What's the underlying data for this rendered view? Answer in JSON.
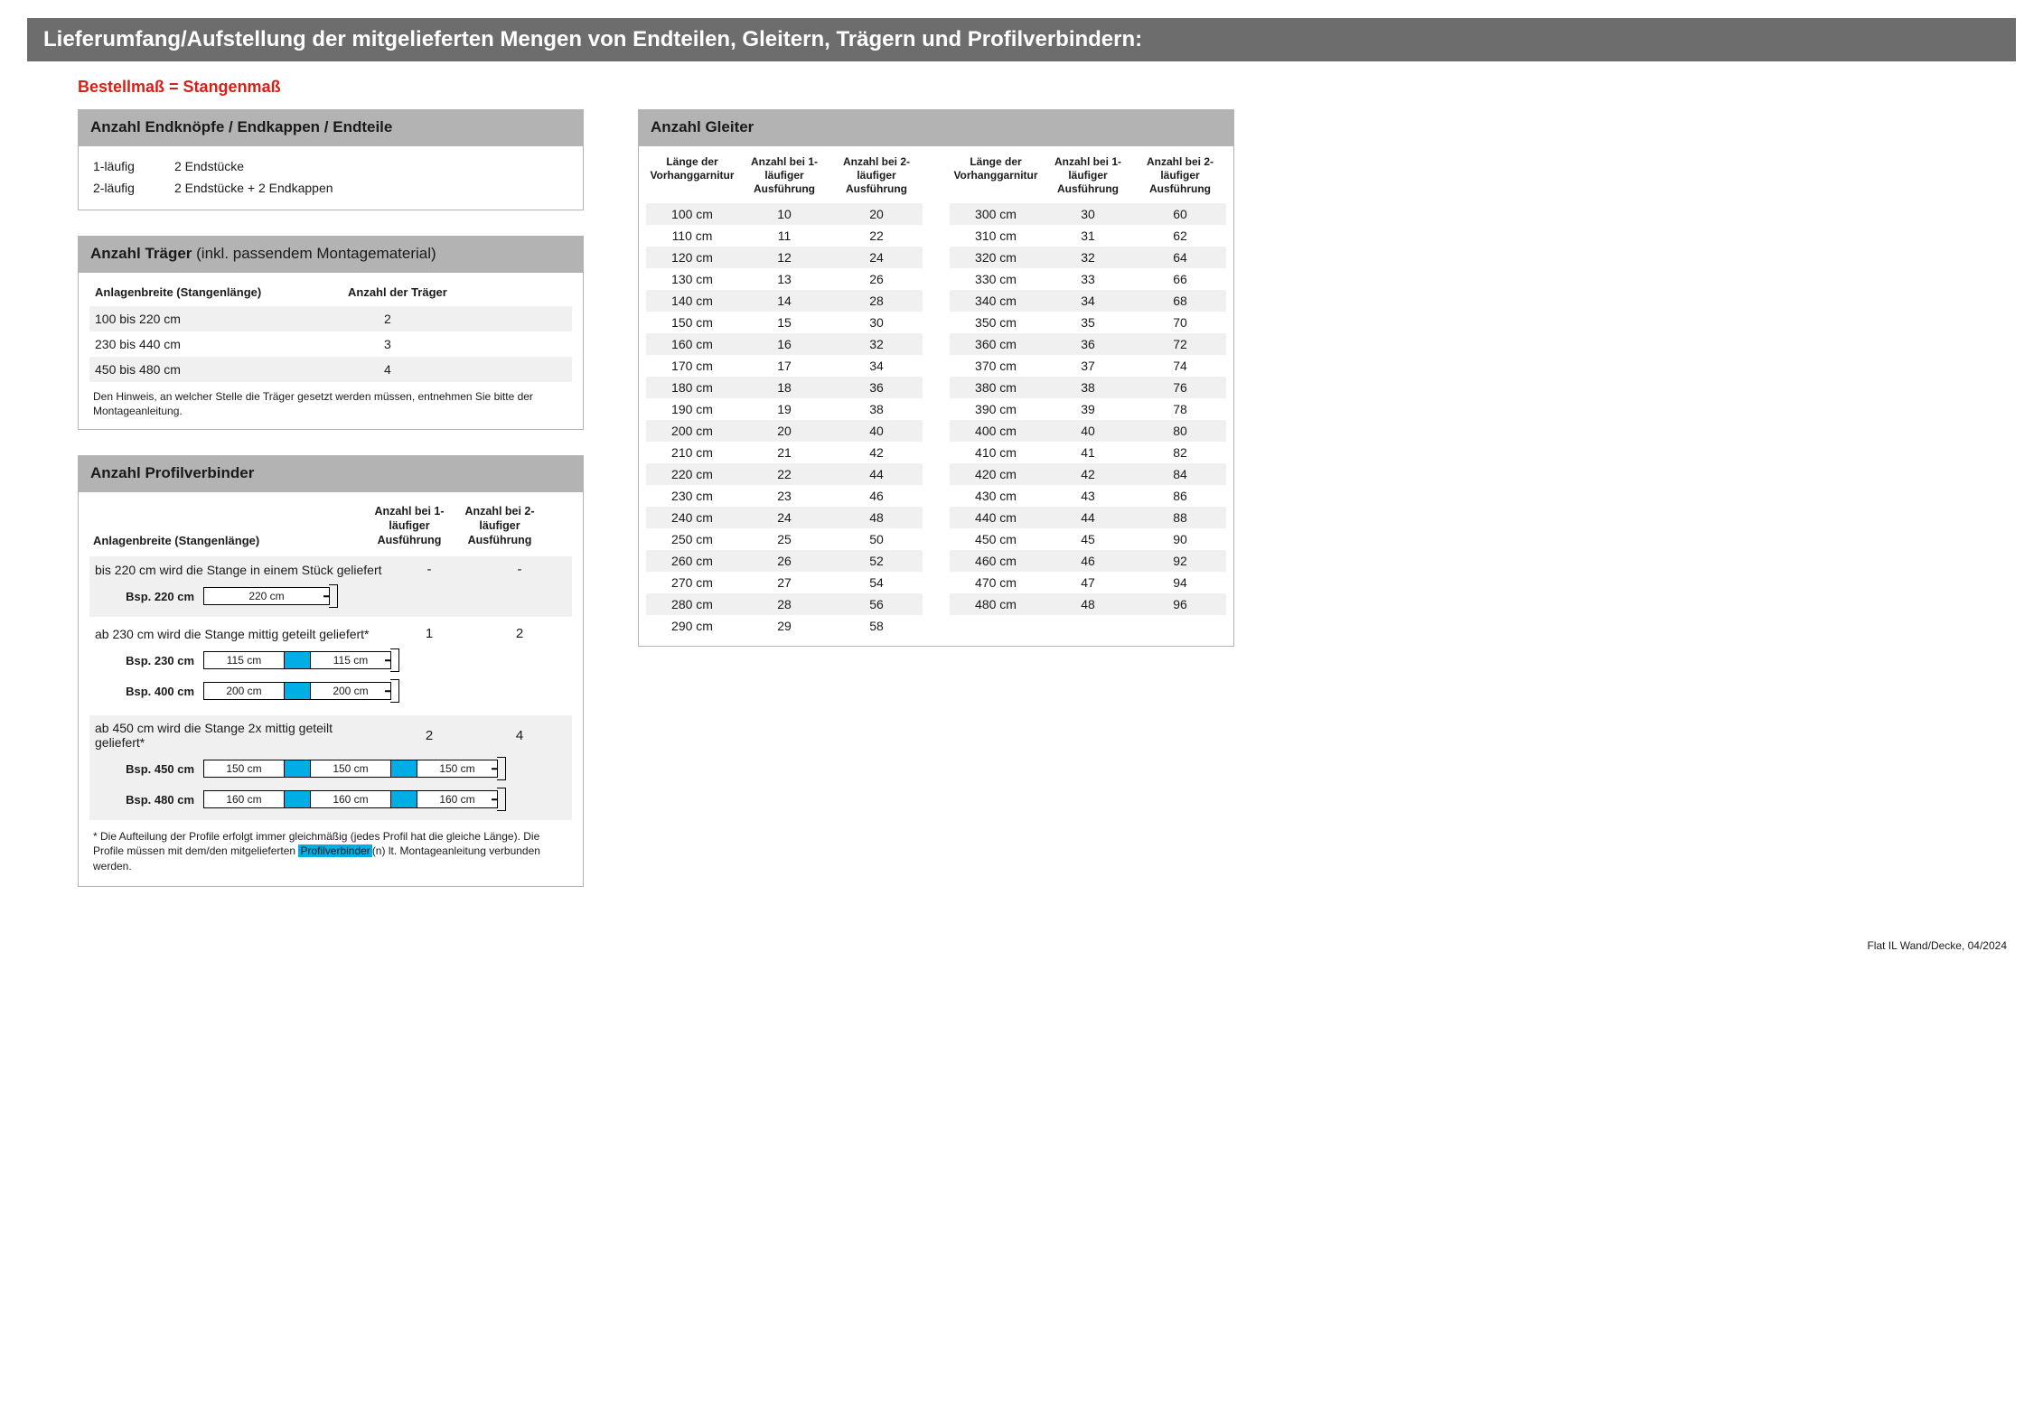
{
  "header": "Lieferumfang/Aufstellung der mitgelieferten Mengen von Endteilen, Gleitern, Trägern und Profilverbindern:",
  "subtitle": "Bestellmaß = Stangenmaß",
  "footer": "Flat IL Wand/Decke, 04/2024",
  "endteile": {
    "title": "Anzahl Endknöpfe / Endkappen / Endteile",
    "rows": [
      {
        "a": "1-läufig",
        "b": "2 Endstücke"
      },
      {
        "a": "2-läufig",
        "b": "2 Endstücke + 2 Endkappen"
      }
    ]
  },
  "traeger": {
    "title_bold": "Anzahl Träger",
    "title_light": " (inkl. passendem Montagematerial)",
    "head_a": "Anlagenbreite (Stangenlänge)",
    "head_b": "Anzahl der Träger",
    "rows": [
      {
        "a": "100 bis 220 cm",
        "b": "2"
      },
      {
        "a": "230 bis 440 cm",
        "b": "3"
      },
      {
        "a": "450 bis 480 cm",
        "b": "4"
      }
    ],
    "note": "Den Hinweis, an welcher Stelle die Träger gesetzt werden müssen, entnehmen Sie bitte der Montageanleitung."
  },
  "pv": {
    "title": "Anzahl Profilverbinder",
    "head_a": "Anlagenbreite (Stangenlänge)",
    "head_b": "Anzahl bei 1-läufiger Ausführung",
    "head_c": "Anzahl bei 2-läufiger Ausführung",
    "sections": [
      {
        "text": "bis 220 cm wird die Stange in einem Stück geliefert",
        "n1": "-",
        "n2": "-",
        "bsps": [
          {
            "label": "Bsp. 220 cm",
            "segs": [
              "220 cm"
            ]
          }
        ]
      },
      {
        "text": "ab 230 cm wird die Stange mittig geteilt geliefert*",
        "n1": "1",
        "n2": "2",
        "bsps": [
          {
            "label": "Bsp. 230 cm",
            "segs": [
              "115 cm",
              "115 cm"
            ]
          },
          {
            "label": "Bsp. 400 cm",
            "segs": [
              "200 cm",
              "200 cm"
            ]
          }
        ]
      },
      {
        "text": "ab 450 cm wird die Stange 2x mittig geteilt geliefert*",
        "n1": "2",
        "n2": "4",
        "bsps": [
          {
            "label": "Bsp. 450 cm",
            "segs": [
              "150 cm",
              "150 cm",
              "150 cm"
            ]
          },
          {
            "label": "Bsp. 480 cm",
            "segs": [
              "160 cm",
              "160 cm",
              "160 cm"
            ]
          }
        ]
      }
    ],
    "footnote_pre": "* Die Aufteilung der Profile erfolgt immer gleichmäßig (jedes Profil hat die gleiche Länge). Die Profile müssen mit dem/den mitgelieferten ",
    "footnote_hl": "Profilverbinder",
    "footnote_post": "(n) lt. Montageanleitung verbunden werden."
  },
  "gleiter": {
    "title": "Anzahl Gleiter",
    "head1": "Länge der Vorhang­garnitur",
    "head2": "Anzahl bei 1-läufiger Ausführung",
    "head3": "Anzahl bei 2-läufiger Ausführung",
    "left": [
      {
        "l": "100 cm",
        "a": "10",
        "b": "20"
      },
      {
        "l": "110 cm",
        "a": "11",
        "b": "22"
      },
      {
        "l": "120 cm",
        "a": "12",
        "b": "24"
      },
      {
        "l": "130 cm",
        "a": "13",
        "b": "26"
      },
      {
        "l": "140 cm",
        "a": "14",
        "b": "28"
      },
      {
        "l": "150 cm",
        "a": "15",
        "b": "30"
      },
      {
        "l": "160 cm",
        "a": "16",
        "b": "32"
      },
      {
        "l": "170 cm",
        "a": "17",
        "b": "34"
      },
      {
        "l": "180 cm",
        "a": "18",
        "b": "36"
      },
      {
        "l": "190 cm",
        "a": "19",
        "b": "38"
      },
      {
        "l": "200 cm",
        "a": "20",
        "b": "40"
      },
      {
        "l": "210 cm",
        "a": "21",
        "b": "42"
      },
      {
        "l": "220 cm",
        "a": "22",
        "b": "44"
      },
      {
        "l": "230 cm",
        "a": "23",
        "b": "46"
      },
      {
        "l": "240 cm",
        "a": "24",
        "b": "48"
      },
      {
        "l": "250 cm",
        "a": "25",
        "b": "50"
      },
      {
        "l": "260 cm",
        "a": "26",
        "b": "52"
      },
      {
        "l": "270 cm",
        "a": "27",
        "b": "54"
      },
      {
        "l": "280 cm",
        "a": "28",
        "b": "56"
      },
      {
        "l": "290 cm",
        "a": "29",
        "b": "58"
      }
    ],
    "right": [
      {
        "l": "300 cm",
        "a": "30",
        "b": "60"
      },
      {
        "l": "310 cm",
        "a": "31",
        "b": "62"
      },
      {
        "l": "320 cm",
        "a": "32",
        "b": "64"
      },
      {
        "l": "330 cm",
        "a": "33",
        "b": "66"
      },
      {
        "l": "340 cm",
        "a": "34",
        "b": "68"
      },
      {
        "l": "350 cm",
        "a": "35",
        "b": "70"
      },
      {
        "l": "360 cm",
        "a": "36",
        "b": "72"
      },
      {
        "l": "370 cm",
        "a": "37",
        "b": "74"
      },
      {
        "l": "380 cm",
        "a": "38",
        "b": "76"
      },
      {
        "l": "390 cm",
        "a": "39",
        "b": "78"
      },
      {
        "l": "400 cm",
        "a": "40",
        "b": "80"
      },
      {
        "l": "410 cm",
        "a": "41",
        "b": "82"
      },
      {
        "l": "420 cm",
        "a": "42",
        "b": "84"
      },
      {
        "l": "430 cm",
        "a": "43",
        "b": "86"
      },
      {
        "l": "440 cm",
        "a": "44",
        "b": "88"
      },
      {
        "l": "450 cm",
        "a": "45",
        "b": "90"
      },
      {
        "l": "460 cm",
        "a": "46",
        "b": "92"
      },
      {
        "l": "470 cm",
        "a": "47",
        "b": "94"
      },
      {
        "l": "480 cm",
        "a": "48",
        "b": "96"
      }
    ]
  },
  "styling": {
    "header_bg": "#6d6d6d",
    "panel_header_bg": "#b3b3b3",
    "row_even_bg": "#f0f0f0",
    "connector_color": "#00aee6",
    "red": "#d91e18",
    "seg_width_1": 140,
    "seg_width_2": 90,
    "seg_width_3": 90
  }
}
